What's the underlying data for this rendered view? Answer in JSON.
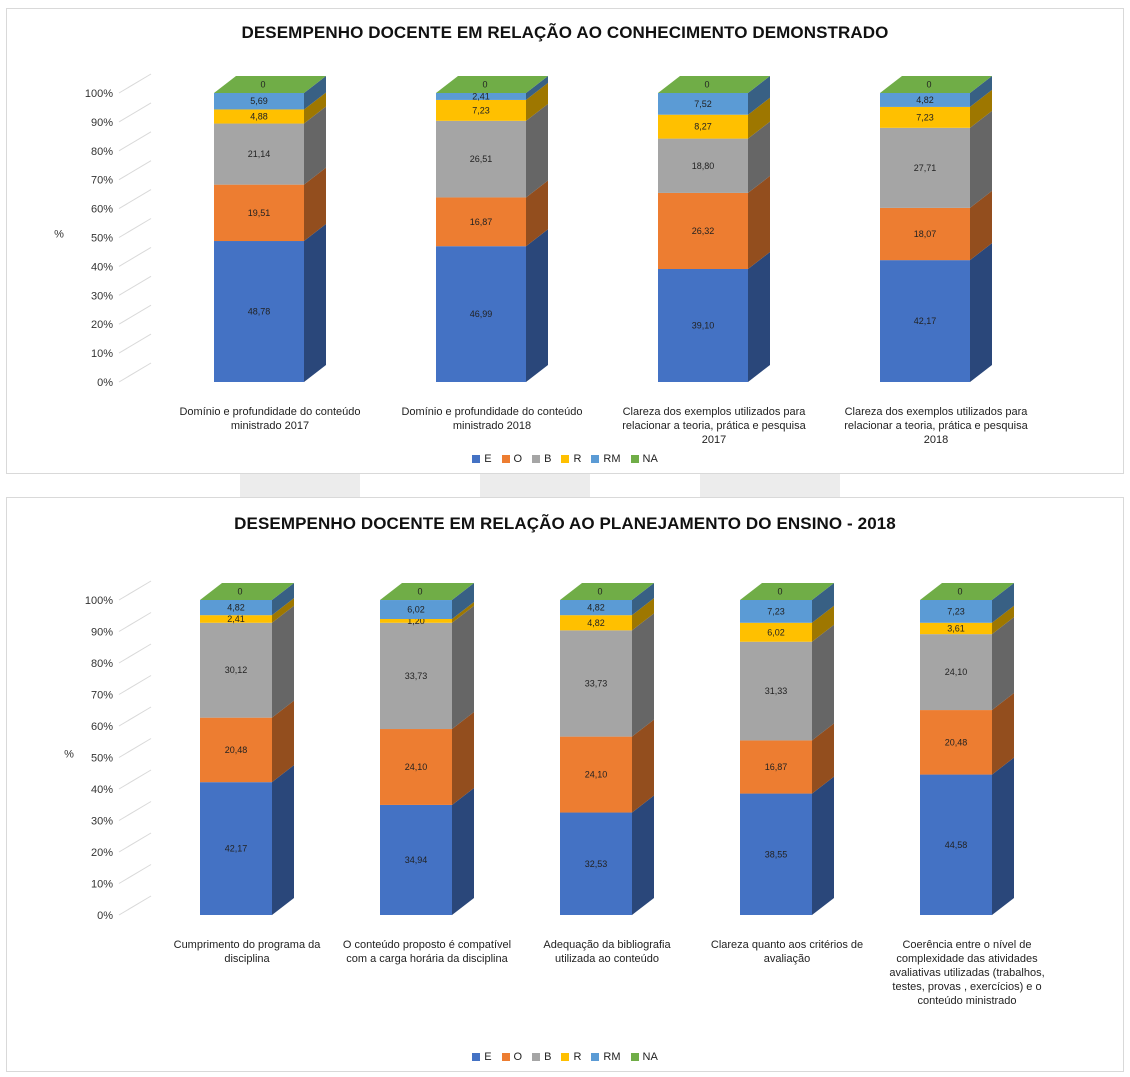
{
  "chart_data": [
    {
      "type": "bar",
      "stacked": true,
      "style": "3d-column",
      "title": "DESEMPENHO DOCENTE EM RELAÇÃO AO CONHECIMENTO DEMONSTRADO",
      "ylabel": "%",
      "ylim": [
        0,
        100
      ],
      "yticks": [
        "0%",
        "10%",
        "20%",
        "30%",
        "40%",
        "50%",
        "60%",
        "70%",
        "80%",
        "90%",
        "100%"
      ],
      "legend_position": "bottom",
      "categories": [
        "Domínio e profundidade do conteúdo ministrado 2017",
        "Domínio e profundidade do conteúdo ministrado 2018",
        "Clareza dos exemplos utilizados para relacionar a teoria, prática e pesquisa 2017",
        "Clareza dos exemplos utilizados para relacionar a teoria, prática e pesquisa 2018"
      ],
      "series": [
        {
          "name": "E",
          "color": "#4472c4",
          "values": [
            48.78,
            46.99,
            39.1,
            42.17
          ],
          "labels": [
            "48,78",
            "46,99",
            "39,10",
            "42,17"
          ]
        },
        {
          "name": "O",
          "color": "#ed7d31",
          "values": [
            19.51,
            16.87,
            26.32,
            18.07
          ],
          "labels": [
            "19,51",
            "16,87",
            "26,32",
            "18,07"
          ]
        },
        {
          "name": "B",
          "color": "#a5a5a5",
          "values": [
            21.14,
            26.51,
            18.8,
            27.71
          ],
          "labels": [
            "21,14",
            "26,51",
            "18,80",
            "27,71"
          ]
        },
        {
          "name": "R",
          "color": "#ffc000",
          "values": [
            4.88,
            7.23,
            8.27,
            7.23
          ],
          "labels": [
            "4,88",
            "7,23",
            "8,27",
            "7,23"
          ]
        },
        {
          "name": "RM",
          "color": "#5b9bd5",
          "values": [
            5.69,
            2.41,
            7.52,
            4.82
          ],
          "labels": [
            "5,69",
            "2,41",
            "7,52",
            "4,82"
          ]
        },
        {
          "name": "NA",
          "color": "#70ad47",
          "values": [
            0,
            0,
            0,
            0
          ],
          "labels": [
            "0",
            "0",
            "0",
            "0"
          ]
        }
      ]
    },
    {
      "type": "bar",
      "stacked": true,
      "style": "3d-column",
      "title": "DESEMPENHO DOCENTE EM RELAÇÃO AO PLANEJAMENTO DO ENSINO - 2018",
      "ylabel": "%",
      "ylim": [
        0,
        100
      ],
      "yticks": [
        "0%",
        "10%",
        "20%",
        "30%",
        "40%",
        "50%",
        "60%",
        "70%",
        "80%",
        "90%",
        "100%"
      ],
      "legend_position": "bottom",
      "categories": [
        "Cumprimento do programa da disciplina",
        "O conteúdo proposto é compatível com a carga horária da disciplina",
        "Adequação da bibliografia utilizada ao conteúdo",
        "Clareza quanto aos critérios de avaliação",
        "Coerência entre o nível de complexidade  das atividades avaliativas utilizadas (trabalhos, testes, provas , exercícios) e o conteúdo ministrado"
      ],
      "series": [
        {
          "name": "E",
          "color": "#4472c4",
          "values": [
            42.17,
            34.94,
            32.53,
            38.55,
            44.58
          ],
          "labels": [
            "42,17",
            "34,94",
            "32,53",
            "38,55",
            "44,58"
          ]
        },
        {
          "name": "O",
          "color": "#ed7d31",
          "values": [
            20.48,
            24.1,
            24.1,
            16.87,
            20.48
          ],
          "labels": [
            "20,48",
            "24,10",
            "24,10",
            "16,87",
            "20,48"
          ]
        },
        {
          "name": "B",
          "color": "#a5a5a5",
          "values": [
            30.12,
            33.73,
            33.73,
            31.33,
            24.1
          ],
          "labels": [
            "30,12",
            "33,73",
            "33,73",
            "31,33",
            "24,10"
          ]
        },
        {
          "name": "R",
          "color": "#ffc000",
          "values": [
            2.41,
            1.2,
            4.82,
            6.02,
            3.61
          ],
          "labels": [
            "2,41",
            "1,20",
            "4,82",
            "6,02",
            "3,61"
          ]
        },
        {
          "name": "RM",
          "color": "#5b9bd5",
          "values": [
            4.82,
            6.02,
            4.82,
            7.23,
            7.23
          ],
          "labels": [
            "4,82",
            "6,02",
            "4,82",
            "7,23",
            "7,23"
          ]
        },
        {
          "name": "NA",
          "color": "#70ad47",
          "values": [
            0,
            0,
            0,
            0,
            0
          ],
          "labels": [
            "0",
            "0",
            "0",
            "0",
            "0"
          ]
        }
      ]
    }
  ]
}
